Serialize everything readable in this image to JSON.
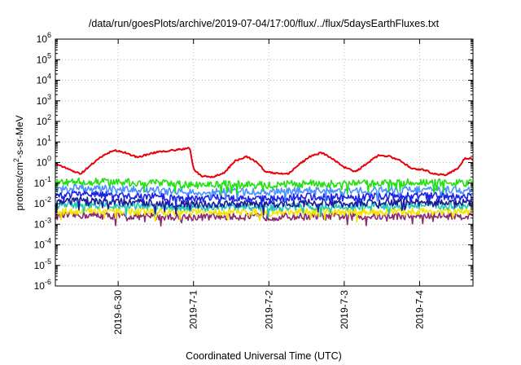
{
  "chart_data": {
    "type": "line",
    "title": "/data/run/goesPlots/archive/2019-07-04/17:00/flux/../flux/5daysEarthFluxes.txt",
    "xlabel": "Coordinated Universal Time (UTC)",
    "ylabel": "protons/cm²-s-sr-MeV",
    "ylabel_parts": {
      "base": "protons/cm",
      "sup": "2",
      "rest": "-s-sr-MeV"
    },
    "y_scale": "log",
    "ylim_exponents": [
      -6,
      6
    ],
    "y_ticks": [
      {
        "base": "10",
        "exp": "-6"
      },
      {
        "base": "10",
        "exp": "-5"
      },
      {
        "base": "10",
        "exp": "-4"
      },
      {
        "base": "10",
        "exp": "-3"
      },
      {
        "base": "10",
        "exp": "-2"
      },
      {
        "base": "10",
        "exp": "-1"
      },
      {
        "base": "10",
        "exp": "0"
      },
      {
        "base": "10",
        "exp": "1"
      },
      {
        "base": "10",
        "exp": "2"
      },
      {
        "base": "10",
        "exp": "3"
      },
      {
        "base": "10",
        "exp": "4"
      },
      {
        "base": "10",
        "exp": "5"
      },
      {
        "base": "10",
        "exp": "6"
      }
    ],
    "x_range_days": [
      "2019-06-29 04:00",
      "2019-07-04 17:00"
    ],
    "x_ticks": [
      "2019-6-30",
      "2019-7-1",
      "2019-7-2",
      "2019-7-3",
      "2019-7-4"
    ],
    "x_tick_days": [
      1,
      2,
      3,
      4,
      5
    ],
    "x_domain_days": [
      0.1667,
      5.7083
    ],
    "grid": true,
    "legend": "none",
    "series": [
      {
        "color": "#e8000b",
        "x": [
          0.17,
          0.35,
          0.5,
          0.65,
          0.8,
          0.95,
          1.1,
          1.25,
          1.4,
          1.55,
          1.7,
          1.85,
          1.95,
          2.0,
          2.1,
          2.25,
          2.4,
          2.55,
          2.7,
          2.85,
          2.95,
          3.1,
          3.25,
          3.4,
          3.55,
          3.7,
          3.85,
          4.0,
          4.15,
          4.3,
          4.45,
          4.6,
          4.75,
          4.9,
          5.05,
          5.2,
          5.35,
          5.5,
          5.6,
          5.7
        ],
        "values": [
          0.9,
          0.45,
          0.28,
          0.8,
          2.2,
          4.0,
          3.0,
          1.8,
          2.5,
          3.5,
          3.8,
          4.5,
          5.0,
          0.5,
          0.22,
          0.2,
          0.3,
          1.2,
          2.0,
          1.0,
          0.35,
          0.3,
          0.28,
          0.8,
          2.0,
          3.0,
          1.5,
          0.6,
          0.35,
          0.9,
          2.2,
          2.0,
          1.2,
          0.5,
          0.45,
          0.28,
          0.25,
          0.5,
          1.6,
          1.5
        ]
      },
      {
        "color": "#22e011",
        "x": [
          0.17,
          0.5,
          1.0,
          1.5,
          2.0,
          2.5,
          3.0,
          3.5,
          4.0,
          4.5,
          5.0,
          5.5,
          5.7
        ],
        "values": [
          0.1,
          0.12,
          0.11,
          0.1,
          0.08,
          0.09,
          0.08,
          0.1,
          0.09,
          0.1,
          0.11,
          0.1,
          0.1
        ]
      },
      {
        "color": "#4a90ff",
        "x": [
          0.17,
          0.5,
          1.0,
          1.5,
          2.0,
          2.5,
          3.0,
          3.5,
          4.0,
          4.5,
          5.0,
          5.5,
          5.7
        ],
        "values": [
          0.05,
          0.06,
          0.05,
          0.045,
          0.035,
          0.04,
          0.035,
          0.045,
          0.04,
          0.045,
          0.05,
          0.045,
          0.045
        ]
      },
      {
        "color": "#1a24e6",
        "x": [
          0.17,
          0.5,
          1.0,
          1.5,
          2.0,
          2.5,
          3.0,
          3.5,
          4.0,
          4.5,
          5.0,
          5.5,
          5.7
        ],
        "values": [
          0.025,
          0.03,
          0.025,
          0.022,
          0.018,
          0.02,
          0.017,
          0.022,
          0.02,
          0.022,
          0.025,
          0.022,
          0.022
        ]
      },
      {
        "color": "#1b1b9a",
        "x": [
          0.17,
          0.5,
          1.0,
          1.5,
          2.0,
          2.5,
          3.0,
          3.5,
          4.0,
          4.5,
          5.0,
          5.5,
          5.7
        ],
        "values": [
          0.012,
          0.014,
          0.012,
          0.011,
          0.009,
          0.01,
          0.009,
          0.011,
          0.01,
          0.011,
          0.012,
          0.011,
          0.011
        ]
      },
      {
        "color": "#1fc7b9",
        "x": [
          0.17,
          0.5,
          1.0,
          1.5,
          2.0,
          2.5,
          3.0,
          3.5,
          4.0,
          4.5,
          5.0,
          5.5,
          5.7
        ],
        "values": [
          0.008,
          0.009,
          0.008,
          0.0075,
          0.0065,
          0.007,
          0.0065,
          0.0075,
          0.007,
          0.0075,
          0.008,
          0.0075,
          0.0075
        ]
      },
      {
        "color": "#f2e600",
        "x": [
          0.17,
          0.5,
          1.0,
          1.5,
          2.0,
          2.5,
          3.0,
          3.5,
          4.0,
          4.5,
          5.0,
          5.5,
          5.7
        ],
        "values": [
          0.004,
          0.0045,
          0.0042,
          0.004,
          0.0038,
          0.004,
          0.0038,
          0.004,
          0.004,
          0.004,
          0.0042,
          0.004,
          0.004
        ]
      },
      {
        "color": "#8b2a6e",
        "x": [
          0.17,
          0.5,
          1.0,
          1.5,
          2.0,
          2.5,
          3.0,
          3.5,
          4.0,
          4.5,
          5.0,
          5.5,
          5.7
        ],
        "values": [
          0.0025,
          0.0028,
          0.0025,
          0.0024,
          0.0022,
          0.0024,
          0.0022,
          0.0024,
          0.0024,
          0.0024,
          0.0026,
          0.0025,
          0.0025
        ]
      }
    ]
  }
}
